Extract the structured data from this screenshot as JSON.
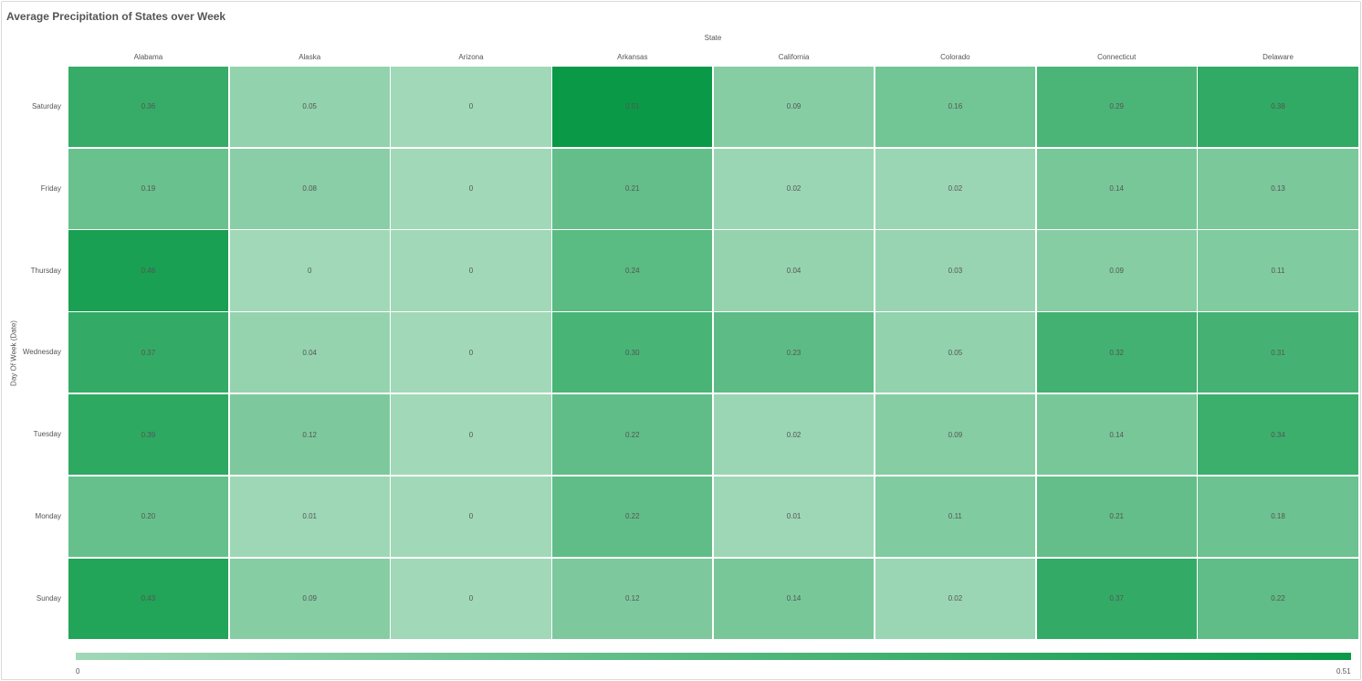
{
  "chart_data": {
    "type": "heatmap",
    "title": "Average Precipitation of States over Week",
    "xlabel": "State",
    "ylabel": "Day Of Week (Date)",
    "x": [
      "Alabama",
      "Alaska",
      "Arizona",
      "Arkansas",
      "California",
      "Colorado",
      "Connecticut",
      "Delaware"
    ],
    "y": [
      "Saturday",
      "Friday",
      "Thursday",
      "Wednesday",
      "Tuesday",
      "Monday",
      "Sunday"
    ],
    "values": [
      [
        0.36,
        0.05,
        0,
        0.51,
        0.09,
        0.16,
        0.29,
        0.38
      ],
      [
        0.19,
        0.08,
        0,
        0.21,
        0.02,
        0.02,
        0.14,
        0.13
      ],
      [
        0.46,
        0,
        0,
        0.24,
        0.04,
        0.03,
        0.09,
        0.11
      ],
      [
        0.37,
        0.04,
        0,
        0.3,
        0.23,
        0.05,
        0.32,
        0.31
      ],
      [
        0.39,
        0.12,
        0,
        0.22,
        0.02,
        0.09,
        0.14,
        0.34
      ],
      [
        0.2,
        0.01,
        0,
        0.22,
        0.01,
        0.11,
        0.21,
        0.18
      ],
      [
        0.43,
        0.09,
        0,
        0.12,
        0.14,
        0.02,
        0.37,
        0.22
      ]
    ],
    "labels": [
      [
        "0.36",
        "0.05",
        "0",
        "0.51",
        "0.09",
        "0.16",
        "0.29",
        "0.38"
      ],
      [
        "0.19",
        "0.08",
        "0",
        "0.21",
        "0.02",
        "0.02",
        "0.14",
        "0.13"
      ],
      [
        "0.46",
        "0",
        "0",
        "0.24",
        "0.04",
        "0.03",
        "0.09",
        "0.11"
      ],
      [
        "0.37",
        "0.04",
        "0",
        "0.30",
        "0.23",
        "0.05",
        "0.32",
        "0.31"
      ],
      [
        "0.39",
        "0.12",
        "0",
        "0.22",
        "0.02",
        "0.09",
        "0.14",
        "0.34"
      ],
      [
        "0.20",
        "0.01",
        "0",
        "0.22",
        "0.01",
        "0.11",
        "0.21",
        "0.18"
      ],
      [
        "0.43",
        "0.09",
        "0",
        "0.12",
        "0.14",
        "0.02",
        "0.37",
        "0.22"
      ]
    ],
    "color_range": {
      "min": 0,
      "max": 0.51,
      "min_label": "0",
      "max_label": "0.51"
    },
    "colors": {
      "low": "#a1d8b8",
      "high": "#0a9a47"
    },
    "legend_placement": "bottom"
  }
}
